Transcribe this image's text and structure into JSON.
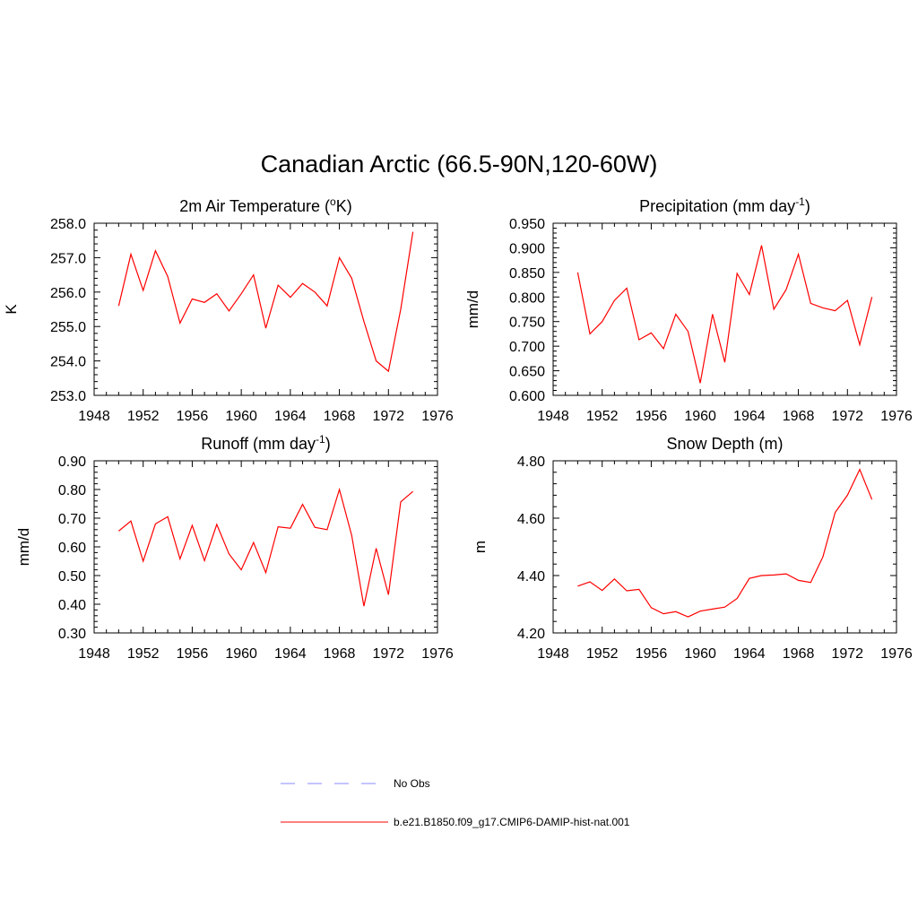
{
  "title": "Canadian Arctic (66.5-90N,120-60W)",
  "colors": {
    "model": "#ff0000",
    "obs": "#a0a0ff",
    "axis": "#000000"
  },
  "legend": {
    "obs_label": "No Obs",
    "model_label": "b.e21.B1850.f09_g17.CMIP6-DAMIP-hist-nat.001"
  },
  "chart_data": [
    {
      "type": "line",
      "title": "2m Air Temperature (",
      "title_sup_left": "o",
      "title_after": "K)",
      "ylabel": "K",
      "xlim": [
        1948,
        1976
      ],
      "ylim": [
        253.0,
        258.0
      ],
      "xticks": [
        "1948",
        "1952",
        "1956",
        "1960",
        "1964",
        "1968",
        "1972",
        "1976"
      ],
      "yticks": [
        "253.0",
        "254.0",
        "255.0",
        "256.0",
        "257.0",
        "258.0"
      ],
      "x": [
        1950,
        1951,
        1952,
        1953,
        1954,
        1955,
        1956,
        1957,
        1958,
        1959,
        1960,
        1961,
        1962,
        1963,
        1964,
        1965,
        1966,
        1967,
        1968,
        1969,
        1970,
        1971,
        1972,
        1973,
        1974
      ],
      "values": [
        255.6,
        257.1,
        256.05,
        257.2,
        256.45,
        255.1,
        255.8,
        255.7,
        255.95,
        255.45,
        255.95,
        256.5,
        254.95,
        256.2,
        255.85,
        256.25,
        256.0,
        255.6,
        257.0,
        256.4,
        255.15,
        254.0,
        253.7,
        255.5,
        257.75
      ]
    },
    {
      "type": "line",
      "title": "Precipitation (mm day",
      "title_sup": "-1",
      "title_after": ")",
      "ylabel": "mm/d",
      "xlim": [
        1948,
        1976
      ],
      "ylim": [
        0.6,
        0.95
      ],
      "xticks": [
        "1948",
        "1952",
        "1956",
        "1960",
        "1964",
        "1968",
        "1972",
        "1976"
      ],
      "yticks": [
        "0.600",
        "0.650",
        "0.700",
        "0.750",
        "0.800",
        "0.850",
        "0.900",
        "0.950"
      ],
      "x": [
        1950,
        1951,
        1952,
        1953,
        1954,
        1955,
        1956,
        1957,
        1958,
        1959,
        1960,
        1961,
        1962,
        1963,
        1964,
        1965,
        1966,
        1967,
        1968,
        1969,
        1970,
        1971,
        1972,
        1973,
        1974
      ],
      "values": [
        0.85,
        0.725,
        0.75,
        0.793,
        0.818,
        0.713,
        0.727,
        0.695,
        0.765,
        0.73,
        0.625,
        0.765,
        0.667,
        0.848,
        0.805,
        0.905,
        0.775,
        0.815,
        0.887,
        0.787,
        0.778,
        0.772,
        0.793,
        0.703,
        0.8
      ]
    },
    {
      "type": "line",
      "title": "Runoff (mm day",
      "title_sup": "-1",
      "title_after": ")",
      "ylabel": "mm/d",
      "xlim": [
        1948,
        1976
      ],
      "ylim": [
        0.3,
        0.9
      ],
      "xticks": [
        "1948",
        "1952",
        "1956",
        "1960",
        "1964",
        "1968",
        "1972",
        "1976"
      ],
      "yticks": [
        "0.30",
        "0.40",
        "0.50",
        "0.60",
        "0.70",
        "0.80",
        "0.90"
      ],
      "x": [
        1950,
        1951,
        1952,
        1953,
        1954,
        1955,
        1956,
        1957,
        1958,
        1959,
        1960,
        1961,
        1962,
        1963,
        1964,
        1965,
        1966,
        1967,
        1968,
        1969,
        1970,
        1971,
        1972,
        1973,
        1974
      ],
      "values": [
        0.655,
        0.69,
        0.55,
        0.68,
        0.705,
        0.558,
        0.675,
        0.552,
        0.678,
        0.575,
        0.52,
        0.615,
        0.51,
        0.67,
        0.665,
        0.748,
        0.668,
        0.66,
        0.8,
        0.64,
        0.393,
        0.595,
        0.433,
        0.757,
        0.793
      ]
    },
    {
      "type": "line",
      "title": "Snow Depth (m)",
      "ylabel": "m",
      "xlim": [
        1948,
        1976
      ],
      "ylim": [
        4.2,
        4.8
      ],
      "xticks": [
        "1948",
        "1952",
        "1956",
        "1960",
        "1964",
        "1968",
        "1972",
        "1976"
      ],
      "yticks": [
        "4.20",
        "4.40",
        "4.60",
        "4.80"
      ],
      "x": [
        1950,
        1951,
        1952,
        1953,
        1954,
        1955,
        1956,
        1957,
        1958,
        1959,
        1960,
        1961,
        1962,
        1963,
        1964,
        1965,
        1966,
        1967,
        1968,
        1969,
        1970,
        1971,
        1972,
        1973,
        1974
      ],
      "values": [
        4.363,
        4.378,
        4.348,
        4.388,
        4.347,
        4.352,
        4.288,
        4.267,
        4.274,
        4.256,
        4.276,
        4.283,
        4.29,
        4.32,
        4.39,
        4.4,
        4.402,
        4.406,
        4.383,
        4.376,
        4.465,
        4.62,
        4.68,
        4.77,
        4.665
      ]
    }
  ]
}
